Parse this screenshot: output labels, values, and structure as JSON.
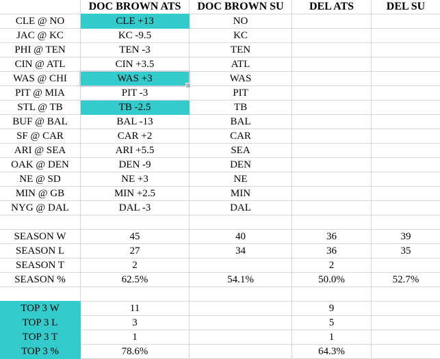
{
  "colors": {
    "hl": "#33cbcb",
    "grid": "#d6d6d6",
    "sel": "#c9cfd8",
    "handle": "#aeb5bd"
  },
  "header": {
    "columns": [
      "",
      "DOC BROWN ATS",
      "DOC BROWN SU",
      "DEL ATS",
      "DEL SU"
    ]
  },
  "games": [
    {
      "matchup": "CLE @ NO",
      "doc_brown_ats": "CLE +13",
      "doc_brown_su": "NO",
      "del_ats": "",
      "del_su": "",
      "ats_highlighted": true,
      "ats_selected": false
    },
    {
      "matchup": "JAC @ KC",
      "doc_brown_ats": "KC -9.5",
      "doc_brown_su": "KC",
      "del_ats": "",
      "del_su": "",
      "ats_highlighted": false,
      "ats_selected": false
    },
    {
      "matchup": "PHI @ TEN",
      "doc_brown_ats": "TEN -3",
      "doc_brown_su": "TEN",
      "del_ats": "",
      "del_su": "",
      "ats_highlighted": false,
      "ats_selected": false
    },
    {
      "matchup": "CIN @ ATL",
      "doc_brown_ats": "CIN +3.5",
      "doc_brown_su": "ATL",
      "del_ats": "",
      "del_su": "",
      "ats_highlighted": false,
      "ats_selected": false
    },
    {
      "matchup": "WAS @ CHI",
      "doc_brown_ats": "WAS +3",
      "doc_brown_su": "WAS",
      "del_ats": "",
      "del_su": "",
      "ats_highlighted": true,
      "ats_selected": true
    },
    {
      "matchup": "PIT @ MIA",
      "doc_brown_ats": "PIT -3",
      "doc_brown_su": "PIT",
      "del_ats": "",
      "del_su": "",
      "ats_highlighted": false,
      "ats_selected": false
    },
    {
      "matchup": "STL @ TB",
      "doc_brown_ats": "TB -2.5",
      "doc_brown_su": "TB",
      "del_ats": "",
      "del_su": "",
      "ats_highlighted": true,
      "ats_selected": false
    },
    {
      "matchup": "BUF @ BAL",
      "doc_brown_ats": "BAL -13",
      "doc_brown_su": "BAL",
      "del_ats": "",
      "del_su": "",
      "ats_highlighted": false,
      "ats_selected": false
    },
    {
      "matchup": "SF @ CAR",
      "doc_brown_ats": "CAR +2",
      "doc_brown_su": "CAR",
      "del_ats": "",
      "del_su": "",
      "ats_highlighted": false,
      "ats_selected": false
    },
    {
      "matchup": "ARI @ SEA",
      "doc_brown_ats": "ARI +5.5",
      "doc_brown_su": "SEA",
      "del_ats": "",
      "del_su": "",
      "ats_highlighted": false,
      "ats_selected": false
    },
    {
      "matchup": "OAK @ DEN",
      "doc_brown_ats": "DEN -9",
      "doc_brown_su": "DEN",
      "del_ats": "",
      "del_su": "",
      "ats_highlighted": false,
      "ats_selected": false
    },
    {
      "matchup": "NE @ SD",
      "doc_brown_ats": "NE +3",
      "doc_brown_su": "NE",
      "del_ats": "",
      "del_su": "",
      "ats_highlighted": false,
      "ats_selected": false
    },
    {
      "matchup": "MIN @ GB",
      "doc_brown_ats": "MIN +2.5",
      "doc_brown_su": "MIN",
      "del_ats": "",
      "del_su": "",
      "ats_highlighted": false,
      "ats_selected": false
    },
    {
      "matchup": "NYG @ DAL",
      "doc_brown_ats": "DAL -3",
      "doc_brown_su": "DAL",
      "del_ats": "",
      "del_su": "",
      "ats_highlighted": false,
      "ats_selected": false
    }
  ],
  "season": {
    "rows": [
      {
        "label": "SEASON W",
        "doc_brown_ats": "45",
        "doc_brown_su": "40",
        "del_ats": "36",
        "del_su": "39"
      },
      {
        "label": "SEASON L",
        "doc_brown_ats": "27",
        "doc_brown_su": "34",
        "del_ats": "36",
        "del_su": "35"
      },
      {
        "label": "SEASON T",
        "doc_brown_ats": "2",
        "doc_brown_su": "",
        "del_ats": "2",
        "del_su": ""
      },
      {
        "label": "SEASON %",
        "doc_brown_ats": "62.5%",
        "doc_brown_su": "54.1%",
        "del_ats": "50.0%",
        "del_su": "52.7%"
      }
    ]
  },
  "top3": {
    "labels_highlighted": true,
    "rows": [
      {
        "label": "TOP 3 W",
        "doc_brown_ats": "11",
        "doc_brown_su": "",
        "del_ats": "9",
        "del_su": ""
      },
      {
        "label": "TOP 3 L",
        "doc_brown_ats": "3",
        "doc_brown_su": "",
        "del_ats": "5",
        "del_su": ""
      },
      {
        "label": "TOP 3 T",
        "doc_brown_ats": "1",
        "doc_brown_su": "",
        "del_ats": "1",
        "del_su": ""
      },
      {
        "label": "TOP 3 %",
        "doc_brown_ats": "78.6%",
        "doc_brown_su": "",
        "del_ats": "64.3%",
        "del_su": ""
      }
    ]
  },
  "selection": {
    "column": "DOC BROWN ATS",
    "row": "WAS @ CHI",
    "value": "WAS +3"
  }
}
